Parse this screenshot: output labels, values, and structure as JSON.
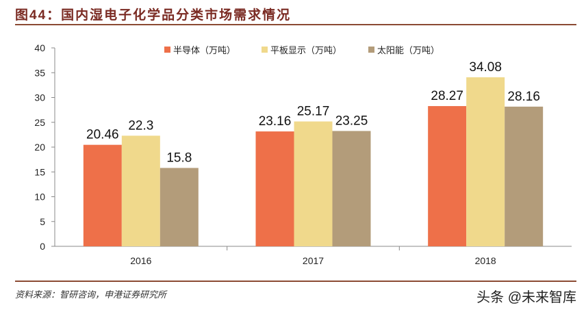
{
  "title": "图44：国内湿电子化学品分类市场需求情况",
  "source": "资料来源：智研咨询，申港证券研究所",
  "watermark": "头条 @未来智库",
  "chart_data": {
    "type": "bar",
    "categories": [
      "2016",
      "2017",
      "2018"
    ],
    "series": [
      {
        "name": "半导体（万吨）",
        "values": [
          20.46,
          23.16,
          28.27
        ],
        "color": "#ee7049"
      },
      {
        "name": "平板显示（万吨）",
        "values": [
          22.3,
          25.17,
          34.08
        ],
        "color": "#f0d98c"
      },
      {
        "name": "太阳能（万吨）",
        "values": [
          15.8,
          23.25,
          28.16
        ],
        "color": "#b39c7a"
      }
    ],
    "data_labels": [
      [
        "20.46",
        "23.16",
        "28.27"
      ],
      [
        "22.3",
        "25.17",
        "34.08"
      ],
      [
        "15.8",
        "23.25",
        "28.16"
      ]
    ],
    "ylim": [
      0,
      40
    ],
    "yticks": [
      0,
      5,
      10,
      15,
      20,
      25,
      30,
      35,
      40
    ],
    "grid": false,
    "legend": "top-center"
  }
}
